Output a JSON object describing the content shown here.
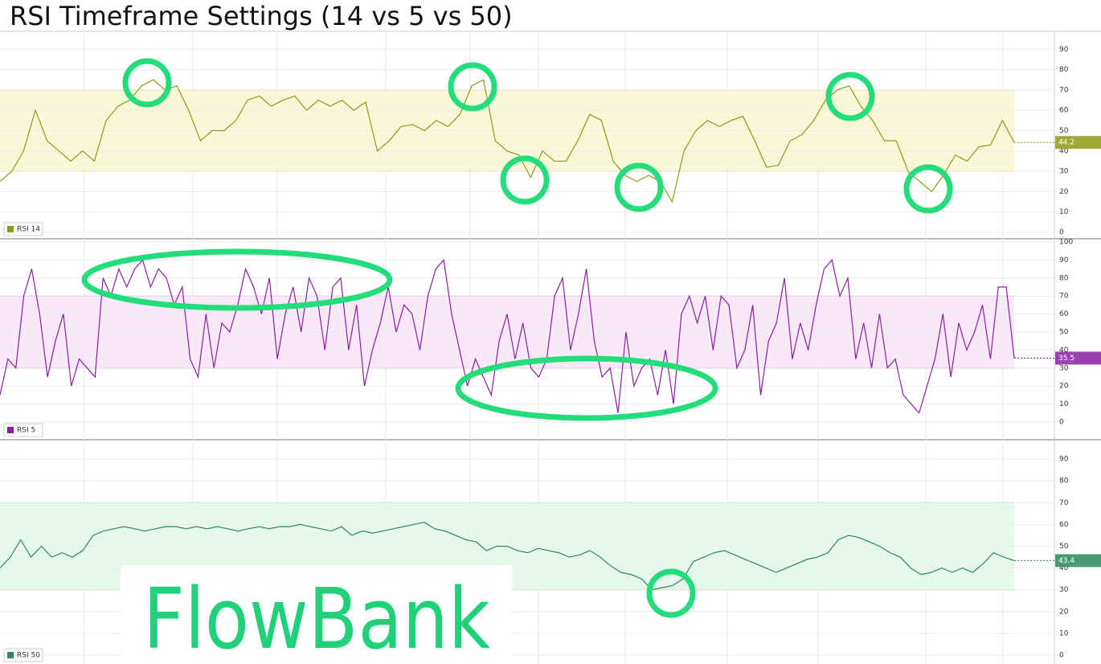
{
  "title": "RSI Timeframe Settings (14 vs 5 vs 50)",
  "logo": "FlowBank",
  "chart_data": [
    {
      "type": "line",
      "series": [
        {
          "name": "RSI 14",
          "color": "#8f9a14",
          "values": [
            25,
            30,
            40,
            60,
            45,
            40,
            35,
            40,
            35,
            55,
            62,
            65,
            72,
            75,
            70,
            72,
            60,
            45,
            50,
            50,
            55,
            65,
            67,
            62,
            65,
            67,
            60,
            65,
            62,
            65,
            60,
            64,
            40,
            45,
            52,
            53,
            50,
            55,
            52,
            58,
            72,
            75,
            45,
            40,
            38,
            27,
            40,
            35,
            35,
            45,
            58,
            55,
            35,
            28,
            25,
            28,
            25,
            15,
            40,
            50,
            55,
            52,
            55,
            57,
            45,
            32,
            33,
            45,
            48,
            55,
            65,
            70,
            72,
            62,
            55,
            45,
            45,
            30,
            25,
            20,
            28,
            38,
            35,
            42,
            43,
            55,
            44.2
          ]
        }
      ],
      "current_value": 44.2,
      "band": [
        30,
        70
      ],
      "band_color": "#f8f8d8",
      "ylim": [
        0,
        100
      ],
      "yticks": [
        0,
        10,
        20,
        30,
        40,
        50,
        60,
        70,
        80,
        90
      ],
      "grid": true
    },
    {
      "type": "line",
      "series": [
        {
          "name": "RSI 5",
          "color": "#8b1fa3",
          "values": [
            15,
            35,
            30,
            70,
            85,
            60,
            25,
            45,
            60,
            20,
            35,
            30,
            25,
            80,
            70,
            85,
            75,
            85,
            90,
            75,
            85,
            80,
            65,
            75,
            35,
            25,
            60,
            30,
            55,
            50,
            65,
            85,
            75,
            60,
            80,
            35,
            60,
            75,
            50,
            80,
            70,
            40,
            75,
            80,
            40,
            65,
            20,
            40,
            55,
            75,
            50,
            65,
            60,
            40,
            70,
            85,
            90,
            60,
            40,
            20,
            35,
            25,
            15,
            45,
            60,
            35,
            55,
            30,
            25,
            35,
            70,
            80,
            40,
            60,
            85,
            45,
            25,
            30,
            5,
            50,
            20,
            30,
            35,
            15,
            40,
            10,
            60,
            70,
            55,
            70,
            40,
            70,
            65,
            30,
            40,
            65,
            15,
            45,
            55,
            80,
            35,
            55,
            40,
            65,
            85,
            90,
            70,
            80,
            35,
            55,
            30,
            60,
            30,
            35,
            15,
            10,
            5,
            20,
            35,
            60,
            25,
            55,
            40,
            50,
            65,
            35,
            75,
            75,
            35.5
          ]
        }
      ],
      "current_value": 35.5,
      "band": [
        30,
        70
      ],
      "band_color": "#f8e8fa",
      "ylim": [
        0,
        100
      ],
      "yticks": [
        0,
        10,
        20,
        30,
        40,
        50,
        60,
        70,
        80,
        90,
        100
      ],
      "grid": true
    },
    {
      "type": "line",
      "series": [
        {
          "name": "RSI 50",
          "color": "#2a8a5c",
          "values": [
            40,
            45,
            53,
            45,
            50,
            45,
            47,
            45,
            48,
            55,
            57,
            58,
            59,
            58,
            57,
            58,
            59,
            59,
            58,
            59,
            58,
            59,
            58,
            57,
            58,
            59,
            58,
            59,
            59,
            60,
            59,
            58,
            57,
            59,
            55,
            57,
            56,
            57,
            58,
            59,
            60,
            61,
            58,
            57,
            55,
            53,
            52,
            48,
            50,
            50,
            48,
            47,
            49,
            48,
            47,
            45,
            46,
            48,
            45,
            41,
            38,
            37,
            35,
            30,
            31,
            32,
            35,
            43,
            45,
            47,
            48,
            46,
            44,
            42,
            40,
            38,
            40,
            42,
            44,
            45,
            47,
            53,
            55,
            54,
            52,
            50,
            47,
            45,
            40,
            37,
            38,
            40,
            38,
            40,
            38,
            42,
            47,
            45,
            43.4
          ]
        }
      ],
      "current_value": 43.4,
      "band": [
        30,
        70
      ],
      "band_color": "#e6f7ee",
      "ylim": [
        0,
        100
      ],
      "yticks": [
        0,
        10,
        20,
        30,
        40,
        50,
        60,
        70,
        80,
        90
      ],
      "grid": true
    }
  ]
}
